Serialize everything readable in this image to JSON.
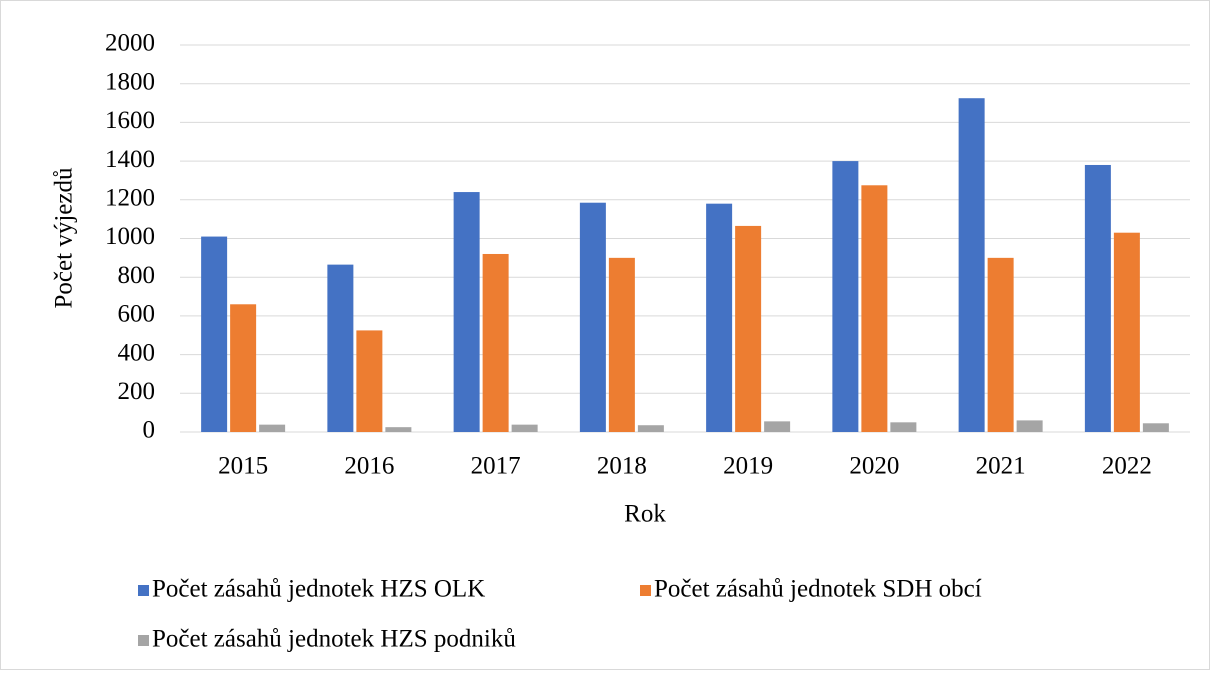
{
  "chart_data": {
    "type": "bar",
    "categories": [
      "2015",
      "2016",
      "2017",
      "2018",
      "2019",
      "2020",
      "2021",
      "2022"
    ],
    "series": [
      {
        "name": "Počet zásahů jednotek HZS OLK",
        "color": "#4472c4",
        "values": [
          1010,
          865,
          1240,
          1185,
          1180,
          1400,
          1725,
          1380
        ]
      },
      {
        "name": "Počet zásahů jednotek SDH obcí",
        "color": "#ed7d31",
        "values": [
          660,
          525,
          920,
          900,
          1065,
          1275,
          900,
          1030
        ]
      },
      {
        "name": "Počet zásahů jednotek HZS podniků",
        "color": "#a5a5a5",
        "values": [
          38,
          25,
          38,
          35,
          55,
          50,
          60,
          45
        ]
      }
    ],
    "xlabel": "Rok",
    "ylabel": "Počet výjezdů",
    "ylim": [
      0,
      2000
    ],
    "yticks": [
      0,
      200,
      400,
      600,
      800,
      1000,
      1200,
      1400,
      1600,
      1800,
      2000
    ],
    "grid": true,
    "legend": "bottom"
  }
}
